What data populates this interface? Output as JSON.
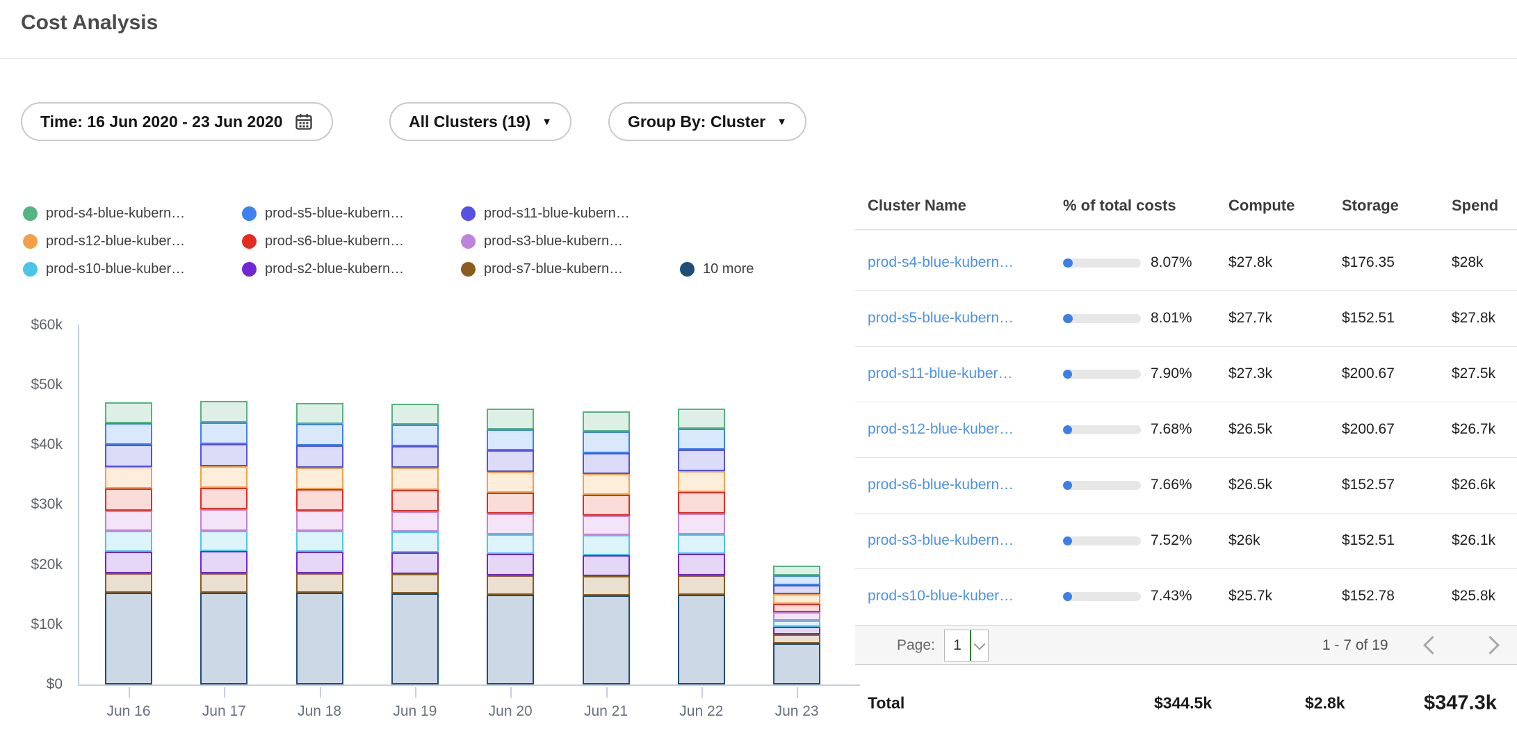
{
  "header": {
    "title": "Cost Analysis"
  },
  "filters": {
    "time_label": "Time: 16 Jun 2020 - 23 Jun 2020",
    "clusters_label": "All Clusters (19)",
    "group_by_label": "Group By: Cluster",
    "caret_glyph": "▼"
  },
  "chart_data": {
    "type": "bar",
    "stacked": true,
    "title": "",
    "xlabel": "",
    "ylabel": "",
    "ylim": [
      0,
      60
    ],
    "y_ticks": [
      {
        "value": 60,
        "label": "$60k"
      },
      {
        "value": 50,
        "label": "$50k"
      },
      {
        "value": 40,
        "label": "$40k"
      },
      {
        "value": 30,
        "label": "$30k"
      },
      {
        "value": 20,
        "label": "$20k"
      },
      {
        "value": 10,
        "label": "$10k"
      },
      {
        "value": 0,
        "label": "$0"
      }
    ],
    "categories": [
      "Jun 16",
      "Jun 17",
      "Jun 18",
      "Jun 19",
      "Jun 20",
      "Jun 21",
      "Jun 22",
      "Jun 23"
    ],
    "legend_position": "top-left",
    "legend_rows": [
      [
        0,
        1,
        2
      ],
      [
        3,
        4,
        5
      ],
      [
        6,
        7,
        8,
        9
      ]
    ],
    "series": [
      {
        "name": "prod-s4-blue-kubern…",
        "color": "#53b57f",
        "fill": "#def0e5",
        "values": [
          3.5,
          3.6,
          3.5,
          3.5,
          3.5,
          3.4,
          3.4,
          1.6
        ]
      },
      {
        "name": "prod-s5-blue-kubern…",
        "color": "#3c82f0",
        "fill": "#dae8fc",
        "values": [
          3.6,
          3.7,
          3.6,
          3.6,
          3.5,
          3.5,
          3.5,
          1.6
        ]
      },
      {
        "name": "prod-s11-blue-kubern…",
        "color": "#5551e2",
        "fill": "#dcdbf8",
        "values": [
          3.7,
          3.7,
          3.7,
          3.6,
          3.6,
          3.5,
          3.6,
          1.5
        ]
      },
      {
        "name": "prod-s12-blue-kuber…",
        "color": "#f0a14a",
        "fill": "#fceedb",
        "values": [
          3.6,
          3.6,
          3.6,
          3.7,
          3.5,
          3.5,
          3.5,
          1.6
        ]
      },
      {
        "name": "prod-s6-blue-kubern…",
        "color": "#e42d21",
        "fill": "#fadcd9",
        "values": [
          3.7,
          3.6,
          3.6,
          3.6,
          3.5,
          3.5,
          3.6,
          1.4
        ]
      },
      {
        "name": "prod-s3-blue-kubern…",
        "color": "#be83da",
        "fill": "#f3e4f7",
        "values": [
          3.4,
          3.5,
          3.4,
          3.4,
          3.4,
          3.3,
          3.4,
          1.4
        ]
      },
      {
        "name": "prod-s10-blue-kuber…",
        "color": "#4cc4ea",
        "fill": "#def4fb",
        "values": [
          3.4,
          3.4,
          3.4,
          3.4,
          3.3,
          3.3,
          3.3,
          1.1
        ]
      },
      {
        "name": "prod-s2-blue-kubern…",
        "color": "#7326d4",
        "fill": "#e5d8f7",
        "values": [
          3.6,
          3.7,
          3.6,
          3.6,
          3.6,
          3.5,
          3.6,
          1.3
        ]
      },
      {
        "name": "prod-s7-blue-kubern…",
        "color": "#8a5c1e",
        "fill": "#eae0d1",
        "values": [
          3.3,
          3.3,
          3.3,
          3.3,
          3.2,
          3.2,
          3.2,
          1.5
        ]
      },
      {
        "name": "10 more",
        "color": "#1d4e78",
        "fill": "#ccd8e5",
        "values": [
          15.3,
          15.3,
          15.3,
          15.2,
          15.0,
          14.9,
          15.0,
          6.8
        ]
      }
    ]
  },
  "table": {
    "columns": [
      "Cluster Name",
      "% of total costs",
      "Compute",
      "Storage",
      "Spend"
    ],
    "rows": [
      {
        "name": "prod-s4-blue-kubern…",
        "pct": "8.07%",
        "pct_value": 8.07,
        "compute": "$27.8k",
        "storage": "$176.35",
        "spend": "$28k"
      },
      {
        "name": "prod-s5-blue-kubern…",
        "pct": "8.01%",
        "pct_value": 8.01,
        "compute": "$27.7k",
        "storage": "$152.51",
        "spend": "$27.8k"
      },
      {
        "name": "prod-s11-blue-kuber…",
        "pct": "7.90%",
        "pct_value": 7.9,
        "compute": "$27.3k",
        "storage": "$200.67",
        "spend": "$27.5k"
      },
      {
        "name": "prod-s12-blue-kuber…",
        "pct": "7.68%",
        "pct_value": 7.68,
        "compute": "$26.5k",
        "storage": "$200.67",
        "spend": "$26.7k"
      },
      {
        "name": "prod-s6-blue-kubern…",
        "pct": "7.66%",
        "pct_value": 7.66,
        "compute": "$26.5k",
        "storage": "$152.57",
        "spend": "$26.6k"
      },
      {
        "name": "prod-s3-blue-kubern…",
        "pct": "7.52%",
        "pct_value": 7.52,
        "compute": "$26k",
        "storage": "$152.51",
        "spend": "$26.1k"
      },
      {
        "name": "prod-s10-blue-kuber…",
        "pct": "7.43%",
        "pct_value": 7.43,
        "compute": "$25.7k",
        "storage": "$152.78",
        "spend": "$25.8k"
      }
    ],
    "pagination": {
      "page_label": "Page:",
      "current_page": "1",
      "range_label": "1 - 7 of 19"
    },
    "total": {
      "label": "Total",
      "compute": "$344.5k",
      "storage": "$2.8k",
      "spend": "$347.3k"
    }
  }
}
